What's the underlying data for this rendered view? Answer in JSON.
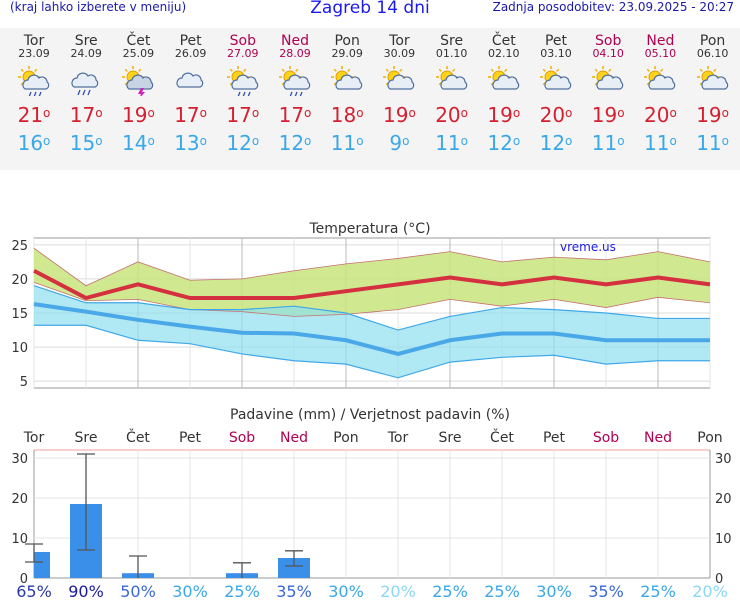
{
  "header": {
    "left_note": "(kraj lahko izberete v meniju)",
    "title": "Zagreb 14 dni",
    "updated": "Zadnja posodobitev: 23.09.2025 - 20:27"
  },
  "days": [
    {
      "name": "Tor",
      "date": "23.09",
      "weekend": false,
      "icon": "sun-cloud-rain-icon",
      "max": "21",
      "min": "16"
    },
    {
      "name": "Sre",
      "date": "24.09",
      "weekend": false,
      "icon": "cloud-rain-icon",
      "max": "17",
      "min": "15"
    },
    {
      "name": "Čet",
      "date": "25.09",
      "weekend": false,
      "icon": "sun-cloud-storm-icon",
      "max": "19",
      "min": "14"
    },
    {
      "name": "Pet",
      "date": "26.09",
      "weekend": false,
      "icon": "cloud-icon",
      "max": "17",
      "min": "13"
    },
    {
      "name": "Sob",
      "date": "27.09",
      "weekend": true,
      "icon": "sun-cloud-rain-icon",
      "max": "17",
      "min": "12"
    },
    {
      "name": "Ned",
      "date": "28.09",
      "weekend": true,
      "icon": "sun-cloud-rain-icon",
      "max": "17",
      "min": "12"
    },
    {
      "name": "Pon",
      "date": "29.09",
      "weekend": false,
      "icon": "sun-cloud-icon",
      "max": "18",
      "min": "11"
    },
    {
      "name": "Tor",
      "date": "30.09",
      "weekend": false,
      "icon": "sun-cloud-icon",
      "max": "19",
      "min": "9"
    },
    {
      "name": "Sre",
      "date": "01.10",
      "weekend": false,
      "icon": "sun-cloud-icon",
      "max": "20",
      "min": "11"
    },
    {
      "name": "Čet",
      "date": "02.10",
      "weekend": false,
      "icon": "sun-cloud-icon",
      "max": "19",
      "min": "12"
    },
    {
      "name": "Pet",
      "date": "03.10",
      "weekend": false,
      "icon": "sun-cloud-icon",
      "max": "20",
      "min": "12"
    },
    {
      "name": "Sob",
      "date": "04.10",
      "weekend": true,
      "icon": "sun-cloud-icon",
      "max": "19",
      "min": "11"
    },
    {
      "name": "Ned",
      "date": "05.10",
      "weekend": true,
      "icon": "sun-cloud-icon",
      "max": "20",
      "min": "11"
    },
    {
      "name": "Pon",
      "date": "06.10",
      "weekend": false,
      "icon": "sun-cloud-icon",
      "max": "19",
      "min": "11"
    }
  ],
  "chart_data": [
    {
      "type": "line",
      "title": "Temperatura (°C)",
      "watermark": "vreme.us",
      "ylim": [
        4,
        26
      ],
      "yticks": [
        5,
        10,
        15,
        20,
        25
      ],
      "grid": true,
      "x": [
        "Tor 23.09",
        "Sre 24.09",
        "Čet 25.09",
        "Pet 26.09",
        "Sob 27.09",
        "Ned 28.09",
        "Pon 29.09",
        "Tor 30.09",
        "Sre 01.10",
        "Čet 02.10",
        "Pet 03.10",
        "Sob 04.10",
        "Ned 05.10",
        "Pon 06.10"
      ],
      "max_line": [
        21.2,
        17.2,
        19.2,
        17.2,
        17.2,
        17.2,
        18.2,
        19.2,
        20.2,
        19.2,
        20.2,
        19.2,
        20.2,
        19.2
      ],
      "max_band_upper": [
        24.5,
        19.0,
        22.5,
        19.8,
        20.0,
        21.2,
        22.2,
        23.0,
        24.0,
        22.5,
        23.2,
        22.8,
        24.0,
        22.5
      ],
      "max_band_lower": [
        19.5,
        16.8,
        17.0,
        15.5,
        15.2,
        14.5,
        14.8,
        15.5,
        17.0,
        16.0,
        17.0,
        15.8,
        17.3,
        16.5
      ],
      "min_line": [
        16.3,
        15.2,
        14.0,
        13.0,
        12.1,
        12.0,
        11.0,
        9.0,
        11.0,
        12.0,
        12.0,
        11.0,
        11.0,
        11.0
      ],
      "min_band_upper": [
        19.0,
        16.5,
        16.5,
        15.5,
        15.5,
        16.0,
        15.0,
        12.5,
        14.5,
        15.8,
        15.5,
        15.0,
        14.2,
        14.2
      ],
      "min_band_lower": [
        13.2,
        13.2,
        11.0,
        10.5,
        9.0,
        8.0,
        7.5,
        5.5,
        7.8,
        8.5,
        8.8,
        7.5,
        8.0,
        8.0
      ]
    },
    {
      "type": "bar",
      "title": "Padavine (mm) / Verjetnost padavin (%)",
      "categories": [
        "Tor",
        "Sre",
        "Čet",
        "Pet",
        "Sob",
        "Ned",
        "Pon",
        "Tor",
        "Sre",
        "Čet",
        "Pet",
        "Sob",
        "Ned",
        "Pon"
      ],
      "weekend": [
        false,
        false,
        false,
        false,
        true,
        true,
        false,
        false,
        false,
        false,
        false,
        true,
        true,
        false
      ],
      "ylim": [
        0,
        32
      ],
      "yticks": [
        0,
        10,
        20,
        30
      ],
      "values": [
        6.5,
        18.5,
        1.2,
        0,
        1.2,
        5.0,
        0,
        0,
        0,
        0,
        0,
        0,
        0,
        0
      ],
      "error_low": [
        4.0,
        7.0,
        0,
        0,
        0,
        3.0,
        0,
        0,
        0,
        0,
        0,
        0,
        0,
        0
      ],
      "error_high": [
        8.5,
        31.0,
        5.5,
        0,
        3.8,
        6.8,
        0,
        0,
        0,
        0,
        0,
        0,
        0,
        0
      ],
      "probability": [
        "65%",
        "90%",
        "50%",
        "30%",
        "25%",
        "35%",
        "30%",
        "20%",
        "25%",
        "25%",
        "30%",
        "35%",
        "25%",
        "20%"
      ],
      "prob_colors": [
        "#2a3aa8",
        "#1a1aa0",
        "#3a68d8",
        "#3aa8e8",
        "#3aa8e8",
        "#3a68d8",
        "#3aa8e8",
        "#8ad8f4",
        "#3aa8e8",
        "#3aa8e8",
        "#3aa8e8",
        "#3a68d8",
        "#3aa8e8",
        "#8ad8f4"
      ]
    }
  ],
  "colors": {
    "max_line": "#d43040",
    "max_band": "#c8e47c",
    "min_line": "#4aa8e8",
    "min_band": "#8ee0ee",
    "overlap_band": "#7cd090",
    "bar": "#3a90e8",
    "weekend": "#b00050"
  }
}
